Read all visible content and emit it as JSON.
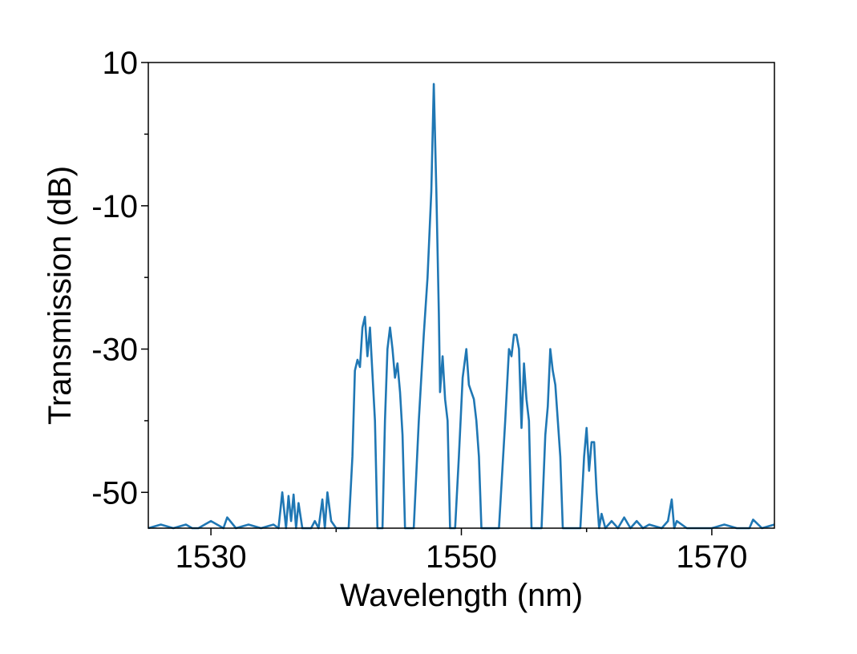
{
  "chart_data": {
    "type": "line",
    "xlabel": "Wavelength (nm)",
    "ylabel": "Transmission (dB)",
    "xlim": [
      1525,
      1575
    ],
    "ylim": [
      -55,
      10
    ],
    "x_ticks_major": [
      1530,
      1550,
      1570
    ],
    "x_ticks_minor": [
      1540,
      1560
    ],
    "y_ticks_major": [
      10,
      -10,
      -30,
      -50
    ],
    "y_ticks_minor": [
      0,
      -20,
      -40
    ],
    "grid": false,
    "line_color": "#1f77b4",
    "series": [
      {
        "x": [
          1525,
          1526,
          1527,
          1528,
          1528.5,
          1529,
          1530,
          1531,
          1531.3,
          1532,
          1533,
          1534,
          1535,
          1535.4,
          1535.7,
          1536,
          1536.2,
          1536.4,
          1536.6,
          1536.8,
          1537,
          1537.3,
          1537.6,
          1538,
          1538.3,
          1538.6,
          1538.9,
          1539.1,
          1539.3,
          1539.6,
          1540,
          1540.5,
          1541,
          1541.3,
          1541.5,
          1541.7,
          1541.9,
          1542.1,
          1542.3,
          1542.5,
          1542.7,
          1542.9,
          1543.1,
          1543.3,
          1543.5,
          1543.7,
          1543.9,
          1544.1,
          1544.3,
          1544.5,
          1544.7,
          1544.9,
          1545.1,
          1545.3,
          1545.5,
          1545.7,
          1545.9,
          1546.2,
          1546.6,
          1547,
          1547.3,
          1547.6,
          1547.8,
          1548,
          1548.2,
          1548.3,
          1548.5,
          1548.7,
          1548.9,
          1549.1,
          1549.3,
          1549.5,
          1549.8,
          1550.1,
          1550.4,
          1550.6,
          1550.8,
          1551,
          1551.2,
          1551.4,
          1551.6,
          1551.8,
          1552,
          1552.2,
          1552.4,
          1552.7,
          1553,
          1553.5,
          1553.8,
          1554,
          1554.2,
          1554.4,
          1554.6,
          1554.8,
          1555,
          1555.2,
          1555.4,
          1555.6,
          1555.8,
          1556.1,
          1556.4,
          1556.7,
          1556.9,
          1557.1,
          1557.3,
          1557.5,
          1557.7,
          1557.9,
          1558.1,
          1558.3,
          1558.6,
          1559,
          1559.5,
          1559.8,
          1560,
          1560.2,
          1560.4,
          1560.6,
          1560.8,
          1561,
          1561.2,
          1561.5,
          1562,
          1562.5,
          1563,
          1563.5,
          1564,
          1564.5,
          1565,
          1566,
          1566.5,
          1566.8,
          1567,
          1567.2,
          1568,
          1569,
          1570,
          1571,
          1572,
          1573,
          1573.3,
          1574,
          1575
        ],
        "y": [
          -55,
          -54.5,
          -55,
          -54.5,
          -55,
          -55,
          -54,
          -55,
          -53.5,
          -55,
          -54.5,
          -55,
          -54.5,
          -55,
          -50,
          -55,
          -50.5,
          -54,
          -50.3,
          -55,
          -51.5,
          -55,
          -55,
          -55,
          -54,
          -55,
          -51,
          -55,
          -50,
          -54,
          -55,
          -55,
          -55,
          -45,
          -33,
          -31.5,
          -32.5,
          -27,
          -25.5,
          -31,
          -27,
          -33.5,
          -40,
          -55,
          -55,
          -55,
          -40,
          -30,
          -27,
          -30,
          -34,
          -32,
          -36,
          -42,
          -55,
          -55,
          -55,
          -55,
          -40,
          -28,
          -20,
          -8,
          7,
          -8,
          -25,
          -36,
          -31,
          -37,
          -40,
          -55,
          -55,
          -55,
          -45,
          -34,
          -30,
          -35,
          -36,
          -37,
          -40,
          -45,
          -55,
          -55,
          -55,
          -55,
          -55,
          -55,
          -55,
          -40,
          -30,
          -31,
          -28,
          -28,
          -30,
          -41,
          -32,
          -37,
          -40,
          -55,
          -55,
          -55,
          -55,
          -42,
          -38,
          -30,
          -33,
          -35,
          -40,
          -45,
          -55,
          -55,
          -55,
          -55,
          -55,
          -45,
          -41,
          -47,
          -43,
          -43,
          -50,
          -55,
          -53,
          -55,
          -54,
          -55,
          -53.5,
          -55,
          -54,
          -55,
          -54.5,
          -55,
          -54,
          -51,
          -55,
          -54,
          -55,
          -55,
          -55,
          -54.5,
          -55,
          -55,
          -53.8,
          -55,
          -54.5
        ]
      }
    ]
  }
}
